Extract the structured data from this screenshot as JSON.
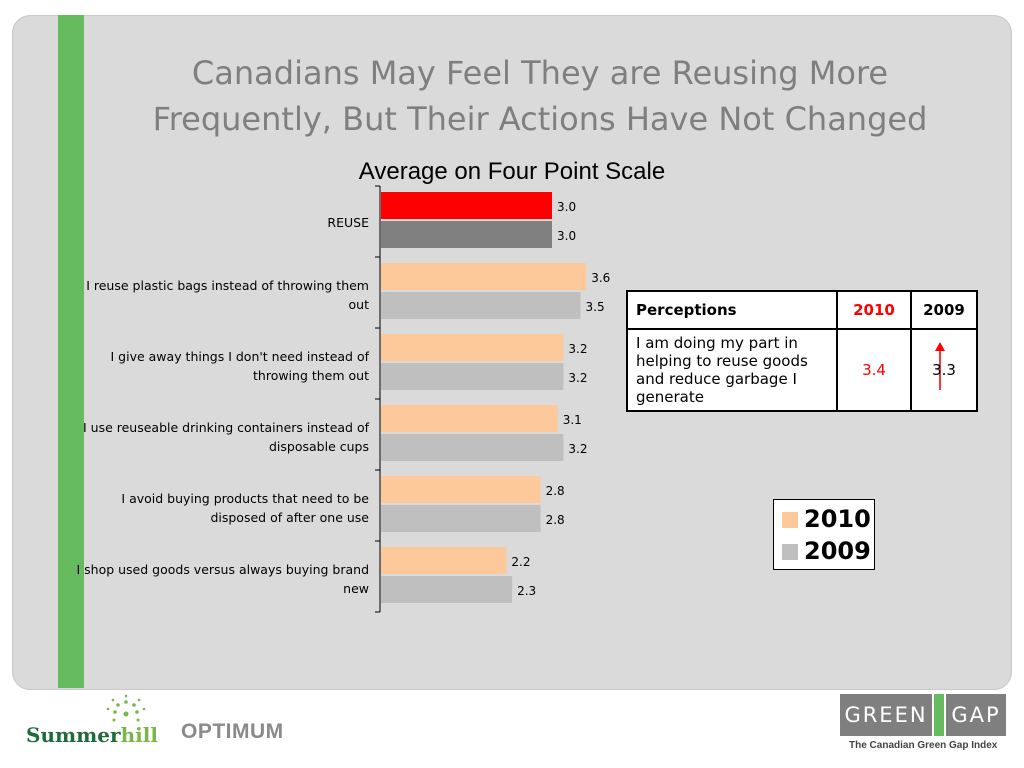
{
  "slide": {
    "title_line1": "Canadians May Feel They are Reusing More",
    "title_line2": "Frequently, But Their Actions Have Not Changed"
  },
  "chart_data": {
    "type": "bar",
    "orientation": "horizontal",
    "title": "Average on Four Point Scale",
    "categories": [
      "REUSE",
      "I reuse plastic bags instead of throwing them out",
      "I give away things I don't need instead of throwing them out",
      "I use reuseable drinking containers instead of disposable cups",
      "I avoid buying products that need to be disposed of after one use",
      "I shop used goods versus always buying brand new"
    ],
    "category_lines": [
      [
        "REUSE"
      ],
      [
        "I reuse plastic bags instead of throwing them",
        "out"
      ],
      [
        "I give away things I don't need instead of",
        "throwing them out"
      ],
      [
        "I use reuseable drinking containers instead of",
        "disposable cups"
      ],
      [
        "I avoid buying products that need to be",
        "disposed of after one use"
      ],
      [
        "I shop used goods versus always buying brand",
        "new"
      ]
    ],
    "series": [
      {
        "name": "2010",
        "values": [
          3.0,
          3.6,
          3.2,
          3.1,
          2.8,
          2.2
        ],
        "labels": [
          "3.0",
          "3.6",
          "3.2",
          "3.1",
          "2.8",
          "2.2"
        ],
        "color": "#fdc99b",
        "highlight_color": "#ff0000"
      },
      {
        "name": "2009",
        "values": [
          3.0,
          3.5,
          3.2,
          3.2,
          2.8,
          2.3
        ],
        "labels": [
          "3.0",
          "3.5",
          "3.2",
          "3.2",
          "2.8",
          "2.3"
        ],
        "color": "#bfbfbf",
        "highlight_color": "#808080"
      }
    ],
    "xlim": [
      0,
      4
    ],
    "grid": false,
    "legend": "right"
  },
  "perceptions_table": {
    "headers": [
      "Perceptions",
      "2010",
      "2009"
    ],
    "rows": [
      {
        "statement": "I am doing my part in helping to reuse goods and reduce garbage I generate",
        "v2010": "3.4",
        "v2009": "3.3"
      }
    ],
    "arrow_color": "#ff0000"
  },
  "legend": {
    "items": [
      {
        "label": "2010",
        "color": "#fdc99b"
      },
      {
        "label": "2009",
        "color": "#bfbfbf"
      }
    ]
  },
  "footer": {
    "logo1_a": "Summer",
    "logo1_b": "hill",
    "logo2": "OPTIMUM",
    "logo3_a": "GREEN",
    "logo3_b": "GAP",
    "tagline": "The Canadian Green Gap Index"
  }
}
